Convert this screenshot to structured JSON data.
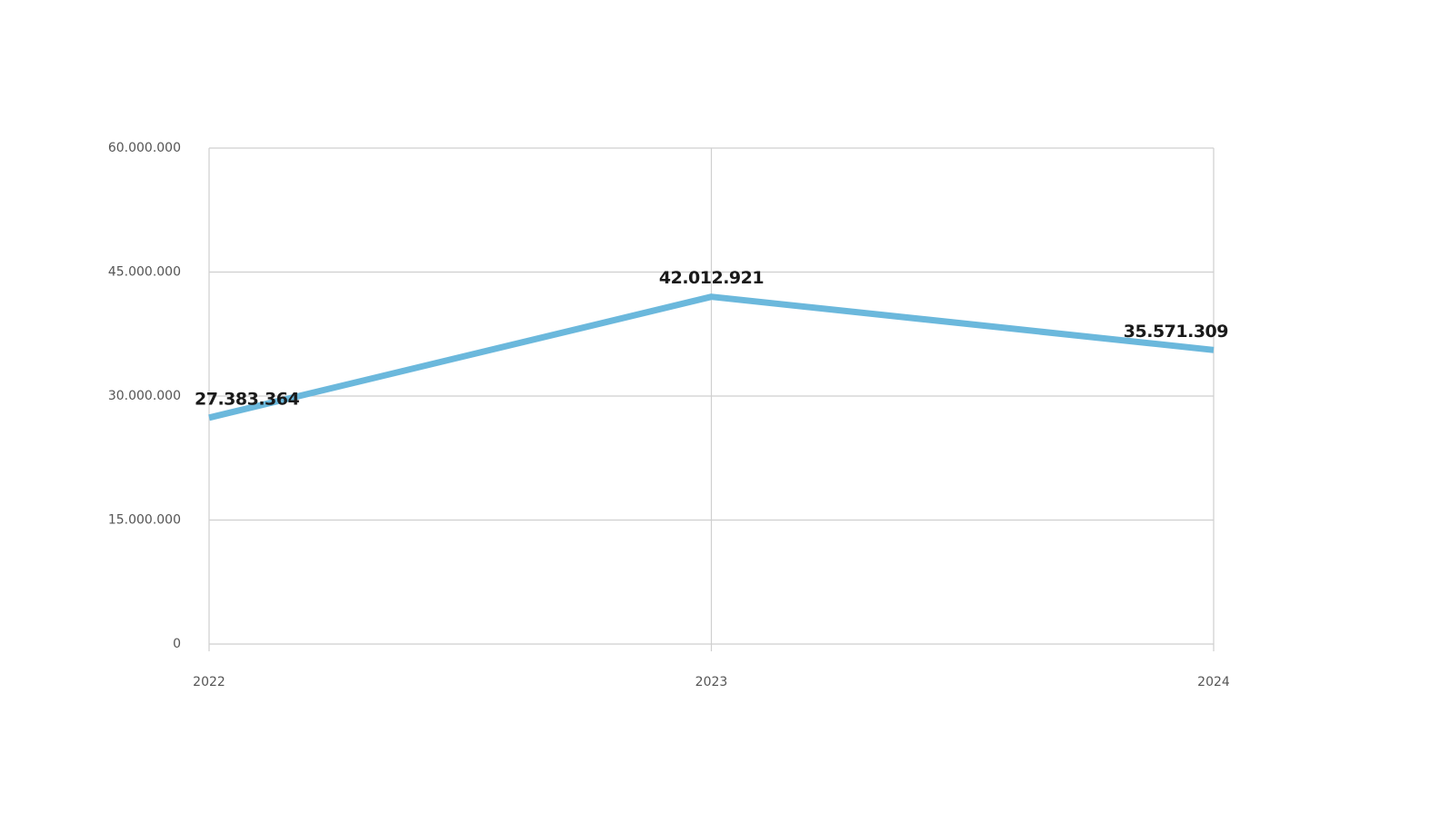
{
  "chart_data": {
    "type": "line",
    "categories": [
      "2022",
      "2023",
      "2024"
    ],
    "series": [
      {
        "color": "#6bb8dc",
        "values": [
          27383364,
          42012921,
          35571309
        ],
        "value_labels": [
          "27.383.364",
          "42.012.921",
          "35.571.309"
        ]
      }
    ],
    "ylim": [
      0,
      60000000
    ],
    "yticks": [
      0,
      {
        "value": 15000000,
        "label": "15.000.000"
      },
      {
        "value": 30000000,
        "label": "30.000.000"
      },
      {
        "value": 45000000,
        "label": "45.000.000"
      },
      {
        "value": 60000000,
        "label": "60.000.000"
      }
    ],
    "grid": true
  }
}
